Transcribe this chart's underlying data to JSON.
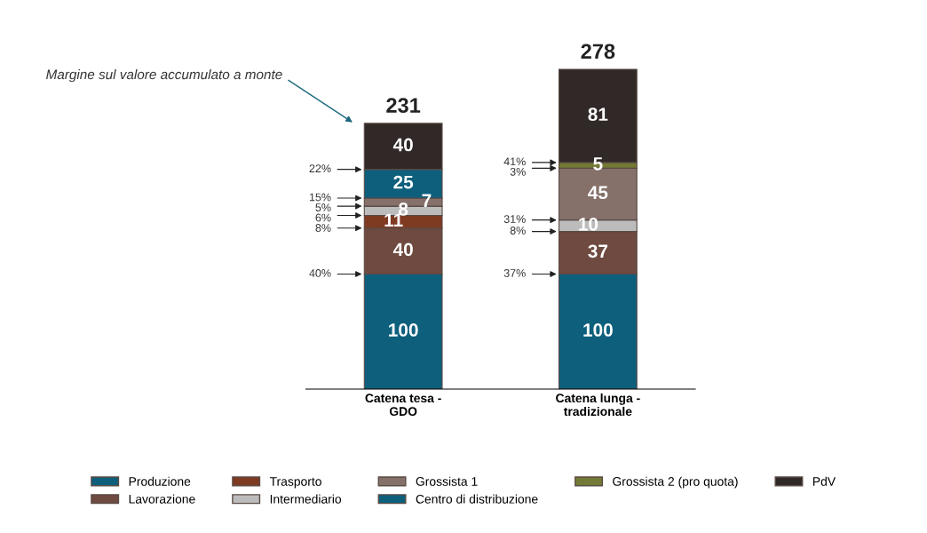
{
  "chart_data": {
    "type": "bar",
    "stacked": true,
    "data_labels": true,
    "legend": "bottom",
    "grid": false,
    "categories": [
      "Catena tesa - GDO",
      "Catena lunga - tradizionale"
    ],
    "series": [
      {
        "name": "Produzione",
        "color": "#0d5f7c",
        "values": [
          100,
          100
        ]
      },
      {
        "name": "Lavorazione",
        "color": "#6e4a40",
        "values": [
          40,
          37
        ]
      },
      {
        "name": "Trasporto",
        "color": "#7f3a22",
        "values": [
          11,
          null
        ]
      },
      {
        "name": "Intermediario",
        "color": "#bcbcbc",
        "values": [
          8,
          10
        ]
      },
      {
        "name": "Grossista 1",
        "color": "#85706a",
        "values": [
          7,
          45
        ]
      },
      {
        "name": "Centro di distribuzione",
        "color": "#0d5f7c",
        "values": [
          25,
          null
        ]
      },
      {
        "name": "Grossista 2 (pro quota)",
        "color": "#737a35",
        "values": [
          null,
          5
        ]
      },
      {
        "name": "PdV",
        "color": "#302927",
        "values": [
          40,
          81
        ]
      }
    ],
    "totals": [
      "231",
      "278"
    ],
    "annotations": [
      "Margine sul valore accumulato a monte",
      "22%",
      "15%",
      "5%",
      "6%",
      "8%",
      "40%",
      "41%",
      "3%",
      "31%",
      "8%",
      "37%"
    ]
  }
}
